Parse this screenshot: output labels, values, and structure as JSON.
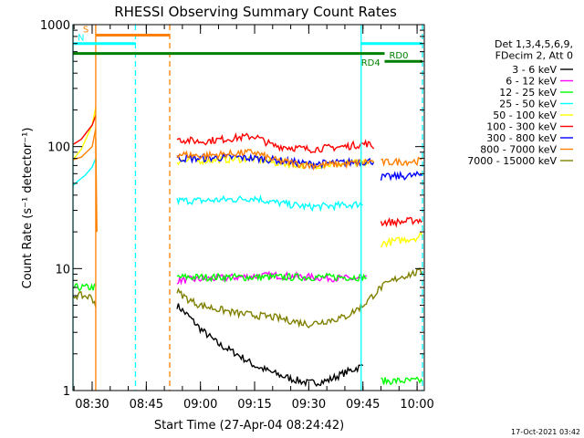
{
  "chart_data": {
    "type": "line",
    "title": "RHESSI Observing Summary Count Rates",
    "xlabel": "Start Time (27-Apr-04 08:24:42)",
    "ylabel": "Count Rate (s⁻¹ detector⁻¹)",
    "yscale": "log",
    "ylim": [
      1,
      1000
    ],
    "xlim_minutes": [
      "08:24:42",
      "10:02:00"
    ],
    "x_ticks": [
      {
        "label": "08:30",
        "t": "08:30"
      },
      {
        "label": "08:45",
        "t": "08:45"
      },
      {
        "label": "09:00",
        "t": "09:00"
      },
      {
        "label": "09:15",
        "t": "09:15"
      },
      {
        "label": "09:30",
        "t": "09:30"
      },
      {
        "label": "09:45",
        "t": "09:45"
      },
      {
        "label": "10:00",
        "t": "10:00"
      }
    ],
    "y_ticks": [
      {
        "label": "1",
        "v": 1
      },
      {
        "label": "10",
        "v": 10
      },
      {
        "label": "100",
        "v": 100
      },
      {
        "label": "1000",
        "v": 1000
      }
    ],
    "legend": {
      "position": "right",
      "header": [
        "Det 1,3,4,5,6,9,",
        "FDecim 2, Att 0"
      ]
    },
    "series": [
      {
        "name": "3 - 6 keV",
        "color": "#000000",
        "segments": [
          {
            "x": [
              "08:53:30",
              "08:57",
              "09:00",
              "09:05",
              "09:10",
              "09:15",
              "09:20",
              "09:25",
              "09:30",
              "09:35",
              "09:40",
              "09:45"
            ],
            "y": [
              5,
              4,
              3.2,
              2.4,
              2,
              1.6,
              1.4,
              1.25,
              1.15,
              1.2,
              1.4,
              1.6
            ],
            "noisy": true
          }
        ]
      },
      {
        "name": "6 - 12 keV",
        "color": "#ff00ff",
        "segments": [
          {
            "x": [
              "08:53:30",
              "09:00",
              "09:10",
              "09:20",
              "09:30",
              "09:40",
              "09:46"
            ],
            "y": [
              8,
              8.2,
              8.5,
              8.8,
              8.5,
              8.3,
              8.2
            ],
            "noisy": true
          }
        ]
      },
      {
        "name": "12 - 25 keV",
        "color": "#00ff00",
        "segments": [
          {
            "x": [
              "08:24:42",
              "08:30",
              "08:31"
            ],
            "y": [
              7,
              7,
              7
            ],
            "noisy": true
          },
          {
            "x": [
              "08:53:30",
              "09:00",
              "09:10",
              "09:20",
              "09:30",
              "09:40",
              "09:46"
            ],
            "y": [
              8.5,
              8.5,
              8.5,
              8.5,
              8.5,
              8.5,
              8.5
            ],
            "noisy": true
          },
          {
            "x": [
              "09:50",
              "09:55",
              "10:00",
              "10:01:30"
            ],
            "y": [
              1.2,
              1.2,
              1.2,
              1.2
            ],
            "noisy": true
          }
        ]
      },
      {
        "name": "25 - 50 keV",
        "color": "#00ffff",
        "segments": [
          {
            "x": [
              "08:24:42",
              "08:26",
              "08:28",
              "08:30",
              "08:31"
            ],
            "y": [
              48,
              52,
              58,
              68,
              80
            ]
          },
          {
            "x": [
              "08:53:30",
              "09:00",
              "09:10",
              "09:15",
              "09:20",
              "09:30",
              "09:40",
              "09:45"
            ],
            "y": [
              36,
              36,
              37,
              38,
              35,
              32,
              33,
              34
            ],
            "noisy": true
          }
        ]
      },
      {
        "name": "50 - 100 keV",
        "color": "#ffff00",
        "segments": [
          {
            "x": [
              "08:24:42",
              "08:27",
              "08:30",
              "08:31"
            ],
            "y": [
              78,
              95,
              150,
              210
            ]
          },
          {
            "x": [
              "08:53:30",
              "09:00",
              "09:10",
              "09:15",
              "09:20",
              "09:30",
              "09:40",
              "09:48"
            ],
            "y": [
              76,
              77,
              79,
              80,
              74,
              70,
              72,
              74
            ],
            "noisy": true
          },
          {
            "x": [
              "09:50",
              "09:55",
              "10:00",
              "10:01:30"
            ],
            "y": [
              16,
              17,
              18,
              19
            ],
            "noisy": true
          }
        ]
      },
      {
        "name": "100 - 300 keV",
        "color": "#ff0000",
        "segments": [
          {
            "x": [
              "08:24:42",
              "08:27",
              "08:30",
              "08:31"
            ],
            "y": [
              104,
              115,
              150,
              180
            ]
          },
          {
            "x": [
              "08:53:30",
              "09:00",
              "09:10",
              "09:15",
              "09:20",
              "09:30",
              "09:40",
              "09:46",
              "09:48"
            ],
            "y": [
              115,
              110,
              118,
              122,
              102,
              95,
              100,
              106,
              100
            ],
            "noisy": true
          },
          {
            "x": [
              "09:50",
              "09:55",
              "10:00",
              "10:01:30"
            ],
            "y": [
              24,
              24,
              25,
              25
            ],
            "noisy": true
          }
        ]
      },
      {
        "name": "300 - 800 keV",
        "color": "#0000ff",
        "segments": [
          {
            "x": [
              "08:53:30",
              "09:00",
              "09:10",
              "09:20",
              "09:30",
              "09:40",
              "09:48"
            ],
            "y": [
              80,
              80,
              82,
              78,
              72,
              74,
              76
            ],
            "noisy": true
          },
          {
            "x": [
              "09:50",
              "09:55",
              "10:00",
              "10:01:30"
            ],
            "y": [
              56,
              57,
              58,
              59
            ],
            "noisy": true
          }
        ]
      },
      {
        "name": "800 - 7000 keV",
        "color": "#ff8000",
        "segments": [
          {
            "x": [
              "08:24:42",
              "08:27",
              "08:30",
              "08:31"
            ],
            "y": [
              78,
              82,
              100,
              140
            ]
          },
          {
            "x": [
              "08:31",
              "08:31:20"
            ],
            "y": [
              120,
              20
            ]
          },
          {
            "x": [
              "08:53:30",
              "09:00",
              "09:10",
              "09:15",
              "09:20",
              "09:30",
              "09:40",
              "09:48"
            ],
            "y": [
              87,
              84,
              88,
              90,
              78,
              70,
              72,
              76
            ],
            "noisy": true
          },
          {
            "x": [
              "09:50",
              "09:55",
              "10:00",
              "10:01:30"
            ],
            "y": [
              74,
              75,
              76,
              77
            ],
            "noisy": true
          }
        ]
      },
      {
        "name": "7000 - 15000 keV",
        "color": "#808000",
        "segments": [
          {
            "x": [
              "08:24:42",
              "08:27",
              "08:30",
              "08:31"
            ],
            "y": [
              6,
              6,
              5.8,
              5
            ],
            "noisy": true
          },
          {
            "x": [
              "08:53:30",
              "08:57",
              "09:00",
              "09:10",
              "09:20",
              "09:30",
              "09:40",
              "09:45",
              "09:50",
              "09:55",
              "10:01:30"
            ],
            "y": [
              6.5,
              5.5,
              5,
              4.3,
              4,
              3.5,
              4,
              5,
              7,
              8.5,
              9.5
            ],
            "noisy": true
          }
        ]
      }
    ],
    "spans": [
      {
        "label": "S",
        "color": "#ff8000",
        "start": "08:31",
        "end": "08:51:30",
        "y": 820
      },
      {
        "label": "N",
        "color": "#00ffff",
        "start": "08:24:42",
        "end": "08:42:00",
        "y": 700
      },
      {
        "label": "",
        "color": "#00ffff",
        "start": "09:44:30",
        "end": "10:01:30",
        "y": 700
      },
      {
        "label": "",
        "color": "#008000",
        "start": "08:24:42",
        "end": "09:51",
        "y": 580
      },
      {
        "label": "RD0",
        "color": "#008000",
        "start": "09:51",
        "end": "10:01:30",
        "y": 500
      }
    ],
    "extra_labels": [
      {
        "label": "RD4",
        "color": "#008000",
        "t": "09:45",
        "y": 500
      }
    ],
    "vlines": [
      {
        "t": "08:24:42",
        "color": "#00ffff",
        "style": "solid"
      },
      {
        "t": "08:31",
        "color": "#ff8000",
        "style": "solid"
      },
      {
        "t": "08:42",
        "color": "#00ffff",
        "style": "dashed"
      },
      {
        "t": "08:51:30",
        "color": "#ff8000",
        "style": "dashed"
      },
      {
        "t": "09:44:30",
        "color": "#00ffff",
        "style": "solid"
      },
      {
        "t": "10:01:30",
        "color": "#00ffff",
        "style": "dashed"
      }
    ],
    "footer": "17-Oct-2021 03:42"
  }
}
